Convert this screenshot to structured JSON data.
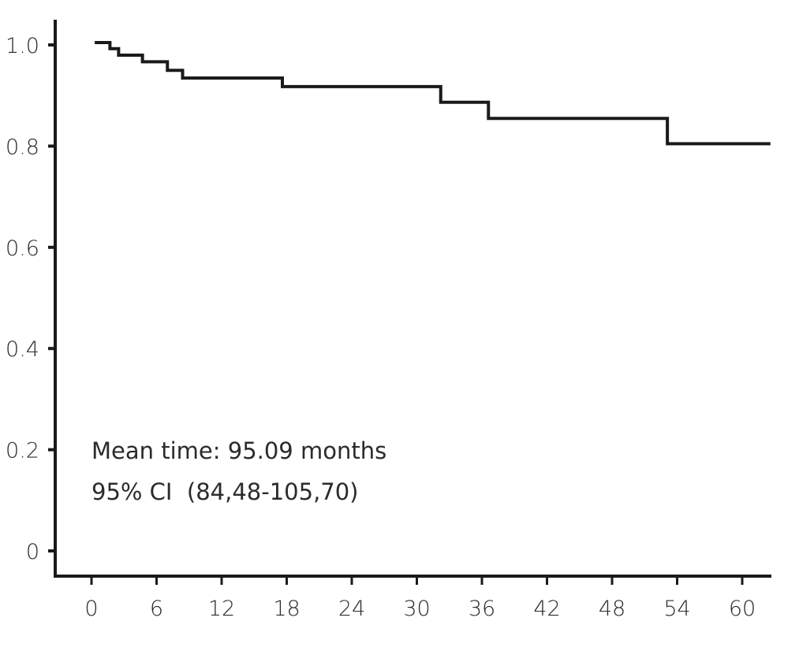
{
  "chart_data": {
    "type": "line",
    "step": true,
    "title": "",
    "xlabel": "",
    "ylabel": "",
    "xlim": [
      0,
      63
    ],
    "ylim": [
      0,
      1.0
    ],
    "x_ticks": [
      "0",
      "6",
      "12",
      "18",
      "24",
      "30",
      "36",
      "42",
      "48",
      "54",
      "60"
    ],
    "y_ticks": [
      "0",
      "0.2",
      "0.4",
      "0.6",
      "0.8",
      "1.0"
    ],
    "grid": false,
    "line_color": "#1a1a1a",
    "series": [
      {
        "x": [
          0.3,
          1.7,
          2.5,
          4.7,
          7.0,
          8.4,
          17.6,
          32.2,
          36.6,
          53.1,
          62.6
        ],
        "y": [
          1.0,
          0.988,
          0.975,
          0.962,
          0.945,
          0.93,
          0.913,
          0.882,
          0.85,
          0.8,
          0.8
        ]
      }
    ],
    "annotations": [
      "Mean time: 95.09 months",
      "95% CI  (84,48-105,70)"
    ]
  }
}
